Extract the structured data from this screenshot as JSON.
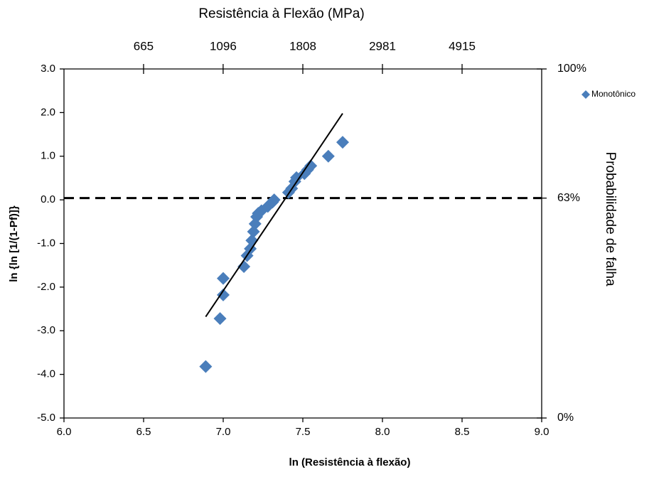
{
  "chart_data": {
    "type": "scatter",
    "title": "Resistência à Flexão (MPa)",
    "x_label": "ln (Resistência à flexão)",
    "y_label": "ln {ln [1/(1-Pf)]}",
    "y2_label": "Probabilidade de falha",
    "xlim": [
      6.0,
      9.0
    ],
    "xticks": [
      {
        "value": 6.0,
        "label": "6.0"
      },
      {
        "value": 6.5,
        "label": "6.5"
      },
      {
        "value": 7.0,
        "label": "7.0"
      },
      {
        "value": 7.5,
        "label": "7.5"
      },
      {
        "value": 8.0,
        "label": "8.0"
      },
      {
        "value": 8.5,
        "label": "8.5"
      },
      {
        "value": 9.0,
        "label": "9.0"
      }
    ],
    "ylim": [
      -5.0,
      3.0
    ],
    "yticks": [
      {
        "value": -5.0,
        "label": "-5.0"
      },
      {
        "value": -4.0,
        "label": "-4.0"
      },
      {
        "value": -3.0,
        "label": "-3.0"
      },
      {
        "value": -2.0,
        "label": "-2.0"
      },
      {
        "value": -1.0,
        "label": "-1.0"
      },
      {
        "value": 0.0,
        "label": "0.0"
      },
      {
        "value": 1.0,
        "label": "1.0"
      },
      {
        "value": 2.0,
        "label": "2.0"
      },
      {
        "value": 3.0,
        "label": "3.0"
      }
    ],
    "x2lim": [
      403.4,
      8103.1
    ],
    "x2_log": true,
    "x2ticks": [
      665,
      1096,
      1808,
      2981,
      4915
    ],
    "y2lim": [
      0,
      100
    ],
    "y2ticks": [
      {
        "value": 0,
        "label": "0%"
      },
      {
        "value": 63,
        "label": "63%"
      },
      {
        "value": 100,
        "label": "100%"
      }
    ],
    "grid": false,
    "legend": "top-right",
    "series": [
      {
        "name": "Monotônico",
        "color": "#4a7ebb",
        "x": [
          6.89,
          6.98,
          7.0,
          7.0,
          7.13,
          7.15,
          7.17,
          7.18,
          7.19,
          7.2,
          7.21,
          7.22,
          7.24,
          7.28,
          7.31,
          7.32,
          7.41,
          7.43,
          7.45,
          7.46,
          7.51,
          7.53,
          7.55,
          7.66,
          7.75
        ],
        "values": [
          -3.82,
          -2.72,
          -2.18,
          -1.8,
          -1.53,
          -1.28,
          -1.12,
          -0.93,
          -0.73,
          -0.55,
          -0.39,
          -0.31,
          -0.25,
          -0.15,
          -0.05,
          0.0,
          0.17,
          0.26,
          0.42,
          0.51,
          0.6,
          0.69,
          0.78,
          1.0,
          1.32
        ]
      }
    ],
    "trendline": {
      "color": "#000000",
      "x": [
        6.89,
        7.75
      ],
      "y": [
        -2.68,
        1.98
      ]
    }
  }
}
